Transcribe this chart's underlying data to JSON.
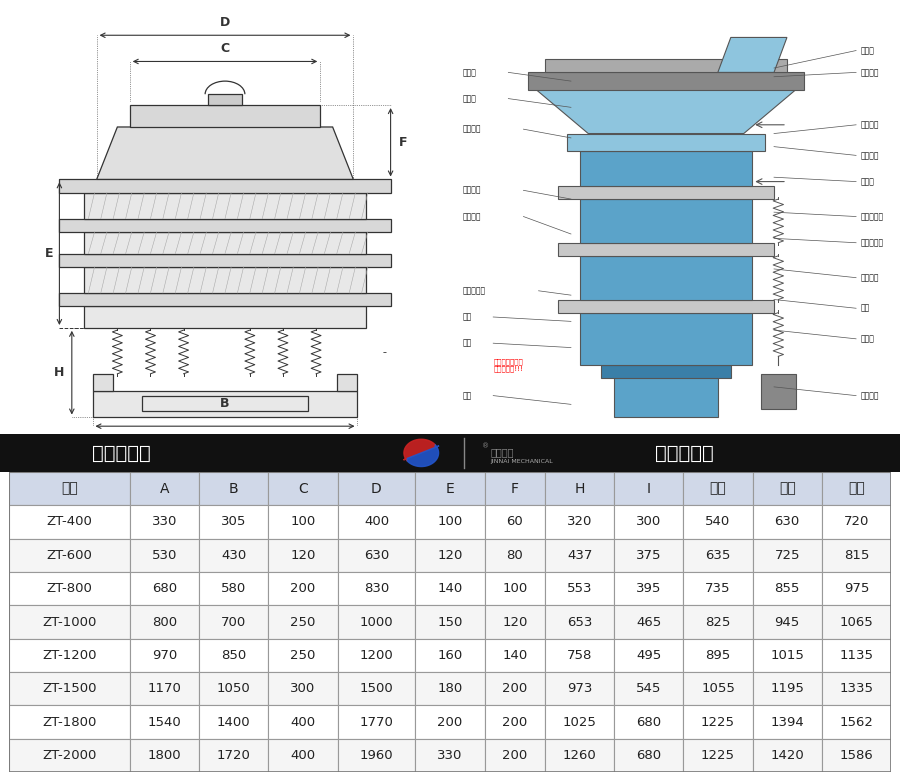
{
  "header_left": "外形尺寸图",
  "header_right": "一般结构图",
  "header_bg": "#1a1a1a",
  "header_text_color": "#ffffff",
  "table_header_row": [
    "型号",
    "A",
    "B",
    "C",
    "D",
    "E",
    "F",
    "H",
    "I",
    "一层",
    "二层",
    "三层"
  ],
  "table_header_bg": "#d0d8e8",
  "table_row_bg_odd": "#ffffff",
  "table_row_bg_even": "#f5f5f5",
  "table_border_color": "#999999",
  "table_data": [
    [
      "ZT-400",
      "330",
      "305",
      "100",
      "400",
      "100",
      "60",
      "320",
      "300",
      "540",
      "630",
      "720"
    ],
    [
      "ZT-600",
      "530",
      "430",
      "120",
      "630",
      "120",
      "80",
      "437",
      "375",
      "635",
      "725",
      "815"
    ],
    [
      "ZT-800",
      "680",
      "580",
      "200",
      "830",
      "140",
      "100",
      "553",
      "395",
      "735",
      "855",
      "975"
    ],
    [
      "ZT-1000",
      "800",
      "700",
      "250",
      "1000",
      "150",
      "120",
      "653",
      "465",
      "825",
      "945",
      "1065"
    ],
    [
      "ZT-1200",
      "970",
      "850",
      "250",
      "1200",
      "160",
      "140",
      "758",
      "495",
      "895",
      "1015",
      "1135"
    ],
    [
      "ZT-1500",
      "1170",
      "1050",
      "300",
      "1500",
      "180",
      "200",
      "973",
      "545",
      "1055",
      "1195",
      "1335"
    ],
    [
      "ZT-1800",
      "1540",
      "1400",
      "400",
      "1770",
      "200",
      "200",
      "1025",
      "680",
      "1225",
      "1394",
      "1562"
    ],
    [
      "ZT-2000",
      "1800",
      "1720",
      "400",
      "1960",
      "330",
      "200",
      "1260",
      "680",
      "1225",
      "1420",
      "1586"
    ]
  ],
  "col_widths": [
    1.4,
    0.8,
    0.8,
    0.8,
    0.9,
    0.8,
    0.7,
    0.8,
    0.8,
    0.8,
    0.8,
    0.8
  ],
  "figure_bg": "#ffffff"
}
